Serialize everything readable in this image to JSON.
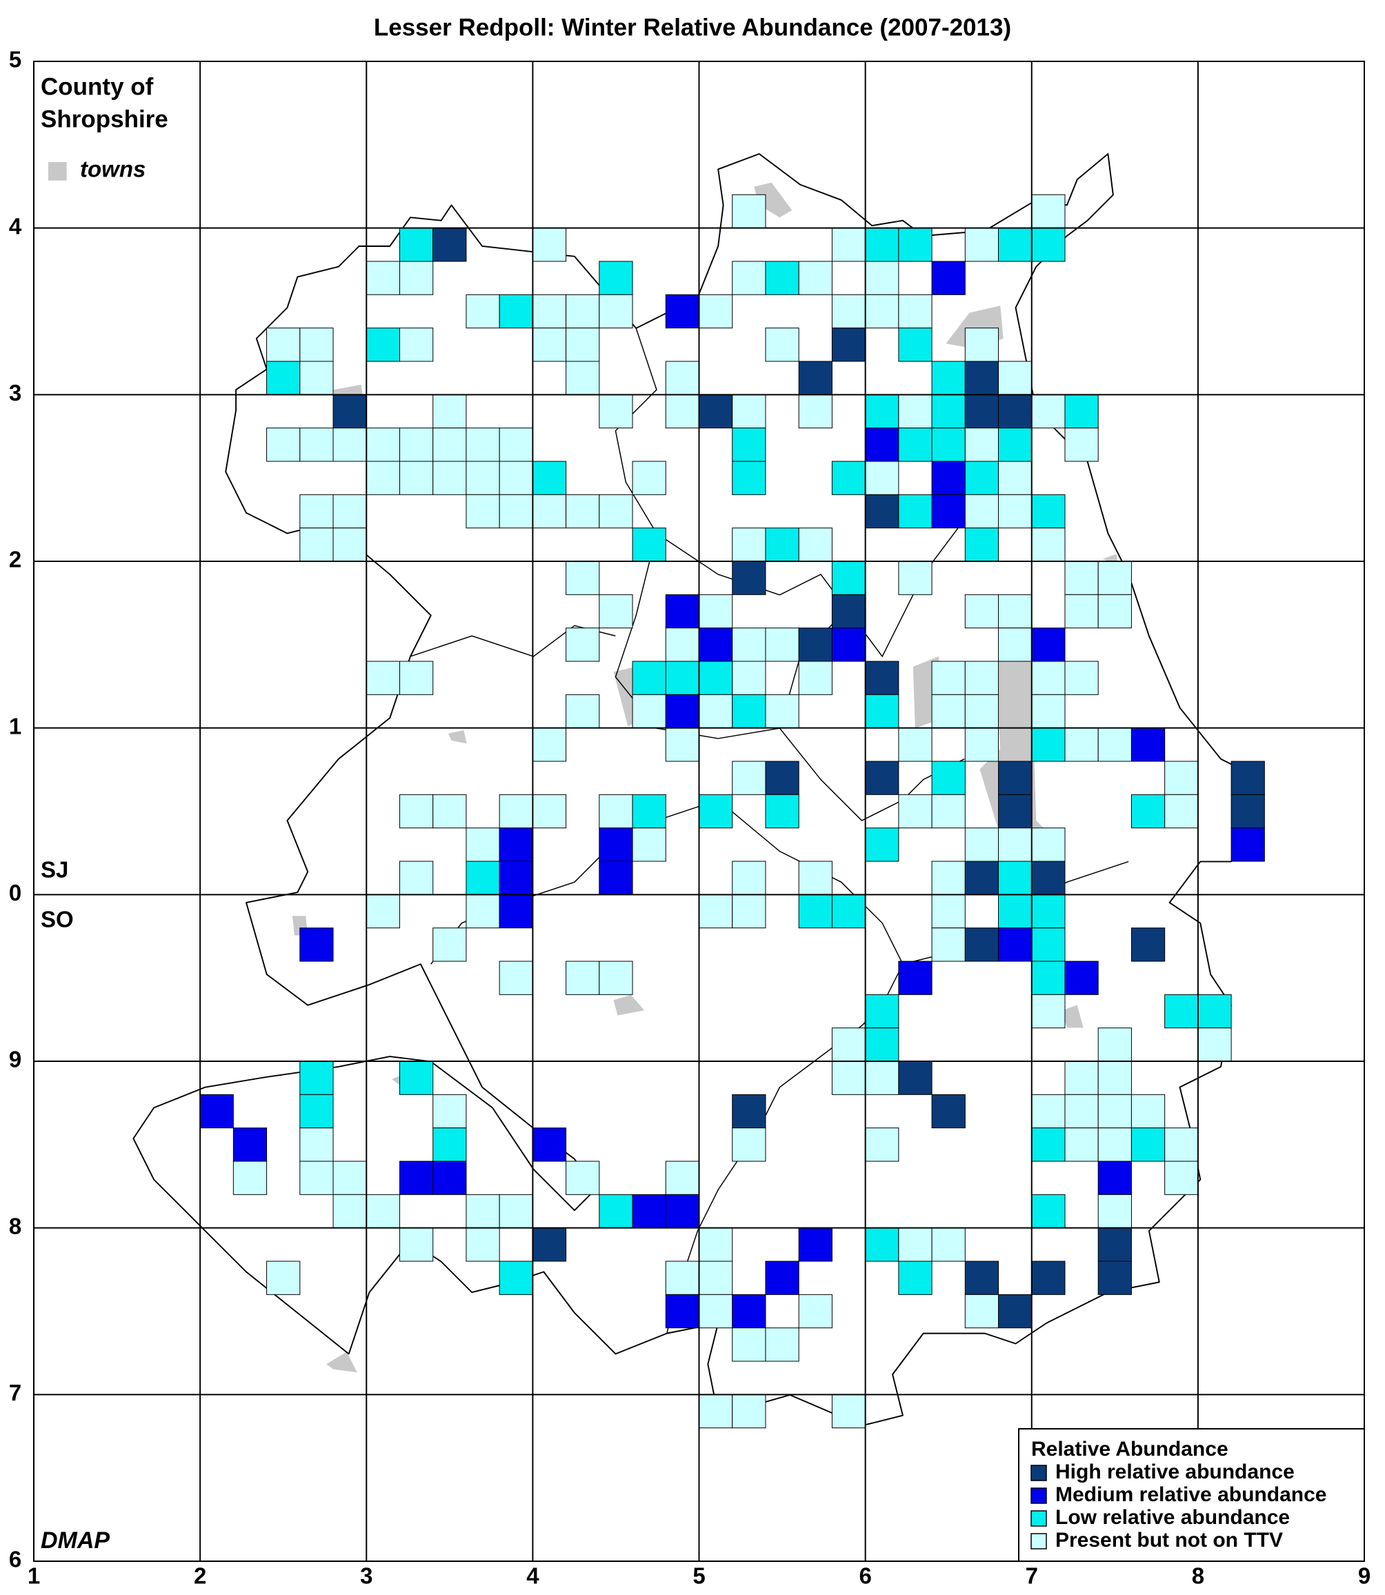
{
  "title": "Lesser Redpoll: Winter Relative Abundance (2007-2013)",
  "county": [
    "County of",
    "Shropshire"
  ],
  "towns_label": "towns",
  "grid_labels": [
    "SJ",
    "SO"
  ],
  "credit": "DMAP",
  "xlim": [
    1,
    9
  ],
  "ylim": [
    -4,
    5
  ],
  "xticks": [
    1,
    2,
    3,
    4,
    5,
    6,
    7,
    8,
    9
  ],
  "yticks": [
    5,
    4,
    3,
    2,
    1,
    0,
    {
      "value": -1,
      "label": "9"
    },
    {
      "value": -2,
      "label": "8"
    },
    {
      "value": -3,
      "label": "7"
    },
    {
      "value": -4,
      "label": "6"
    }
  ],
  "legend": {
    "title": "Relative Abundance",
    "items": [
      {
        "label": "High relative abundance",
        "color": "#0b3a78"
      },
      {
        "label": "Medium relative abundance",
        "color": "#0000ee"
      },
      {
        "label": "Low relative abundance",
        "color": "#00eeee"
      },
      {
        "label": "Present but not on TTV",
        "color": "#ccffff"
      }
    ]
  },
  "rows": [
    {
      "y": 4.0,
      "cells": [
        [
          5.2,
          3
        ],
        [
          7.0,
          3
        ]
      ]
    },
    {
      "y": 3.8,
      "cells": [
        [
          3.2,
          2
        ],
        [
          3.4,
          0
        ],
        [
          4.0,
          3
        ],
        [
          5.8,
          3
        ],
        [
          6.0,
          2
        ],
        [
          6.2,
          2
        ],
        [
          6.6,
          3
        ],
        [
          6.8,
          2
        ],
        [
          7.0,
          2
        ]
      ]
    },
    {
      "y": 3.6,
      "cells": [
        [
          3.0,
          3
        ],
        [
          3.2,
          3
        ],
        [
          4.4,
          2
        ],
        [
          5.2,
          3
        ],
        [
          5.4,
          2
        ],
        [
          5.6,
          3
        ],
        [
          6.0,
          3
        ],
        [
          6.4,
          1
        ]
      ]
    },
    {
      "y": 3.4,
      "cells": [
        [
          3.6,
          3
        ],
        [
          3.8,
          2
        ],
        [
          4.0,
          3
        ],
        [
          4.2,
          3
        ],
        [
          4.4,
          3
        ],
        [
          4.8,
          1
        ],
        [
          5.0,
          3
        ],
        [
          5.8,
          3
        ],
        [
          6.0,
          3
        ],
        [
          6.2,
          3
        ]
      ]
    },
    {
      "y": 3.2,
      "cells": [
        [
          2.4,
          3
        ],
        [
          2.6,
          3
        ],
        [
          3.0,
          2
        ],
        [
          3.2,
          3
        ],
        [
          4.0,
          3
        ],
        [
          4.2,
          3
        ],
        [
          5.4,
          3
        ],
        [
          5.8,
          0
        ],
        [
          6.2,
          2
        ],
        [
          6.6,
          3
        ]
      ]
    },
    {
      "y": 3.0,
      "cells": [
        [
          2.4,
          2
        ],
        [
          2.6,
          3
        ],
        [
          4.2,
          3
        ],
        [
          4.8,
          3
        ],
        [
          5.6,
          0
        ],
        [
          6.4,
          2
        ],
        [
          6.6,
          0
        ],
        [
          6.8,
          3
        ]
      ]
    },
    {
      "y": 2.8,
      "cells": [
        [
          2.8,
          0
        ],
        [
          3.4,
          3
        ],
        [
          4.4,
          3
        ],
        [
          4.8,
          3
        ],
        [
          5.0,
          0
        ],
        [
          5.2,
          3
        ],
        [
          5.6,
          3
        ],
        [
          6.0,
          2
        ],
        [
          6.2,
          3
        ],
        [
          6.4,
          2
        ],
        [
          6.6,
          0
        ],
        [
          6.8,
          0
        ],
        [
          7.0,
          3
        ],
        [
          7.2,
          2
        ]
      ]
    },
    {
      "y": 2.6,
      "cells": [
        [
          2.4,
          3
        ],
        [
          2.6,
          3
        ],
        [
          2.8,
          3
        ],
        [
          3.0,
          3
        ],
        [
          3.2,
          3
        ],
        [
          3.4,
          3
        ],
        [
          3.6,
          3
        ],
        [
          3.8,
          3
        ],
        [
          5.2,
          2
        ],
        [
          6.0,
          1
        ],
        [
          6.2,
          2
        ],
        [
          6.4,
          2
        ],
        [
          6.6,
          3
        ],
        [
          6.8,
          2
        ],
        [
          7.2,
          3
        ]
      ]
    },
    {
      "y": 2.4,
      "cells": [
        [
          3.0,
          3
        ],
        [
          3.2,
          3
        ],
        [
          3.4,
          3
        ],
        [
          3.6,
          3
        ],
        [
          3.8,
          3
        ],
        [
          4.0,
          2
        ],
        [
          4.6,
          3
        ],
        [
          5.2,
          2
        ],
        [
          5.8,
          2
        ],
        [
          6.0,
          3
        ],
        [
          6.4,
          1
        ],
        [
          6.6,
          2
        ],
        [
          6.8,
          3
        ]
      ]
    },
    {
      "y": 2.2,
      "cells": [
        [
          2.6,
          3
        ],
        [
          2.8,
          3
        ],
        [
          3.6,
          3
        ],
        [
          3.8,
          3
        ],
        [
          4.0,
          3
        ],
        [
          4.2,
          3
        ],
        [
          4.4,
          3
        ],
        [
          6.0,
          0
        ],
        [
          6.2,
          2
        ],
        [
          6.4,
          1
        ],
        [
          6.6,
          3
        ],
        [
          6.8,
          3
        ],
        [
          7.0,
          2
        ]
      ]
    },
    {
      "y": 2.0,
      "cells": [
        [
          2.6,
          3
        ],
        [
          2.8,
          3
        ],
        [
          4.6,
          2
        ],
        [
          5.2,
          3
        ],
        [
          5.4,
          2
        ],
        [
          5.6,
          3
        ],
        [
          6.6,
          2
        ],
        [
          7.0,
          3
        ]
      ]
    },
    {
      "y": 1.8,
      "cells": [
        [
          4.2,
          3
        ],
        [
          5.2,
          0
        ],
        [
          5.8,
          2
        ],
        [
          6.2,
          3
        ],
        [
          7.2,
          3
        ],
        [
          7.4,
          3
        ]
      ]
    },
    {
      "y": 1.6,
      "cells": [
        [
          4.4,
          3
        ],
        [
          4.8,
          1
        ],
        [
          5.0,
          3
        ],
        [
          5.8,
          0
        ],
        [
          6.6,
          3
        ],
        [
          6.8,
          3
        ],
        [
          7.2,
          3
        ],
        [
          7.4,
          3
        ]
      ]
    },
    {
      "y": 1.4,
      "cells": [
        [
          4.2,
          3
        ],
        [
          4.8,
          3
        ],
        [
          5.0,
          1
        ],
        [
          5.2,
          3
        ],
        [
          5.4,
          3
        ],
        [
          5.6,
          0
        ],
        [
          5.8,
          1
        ],
        [
          6.8,
          3
        ],
        [
          7.0,
          1
        ]
      ]
    },
    {
      "y": 1.2,
      "cells": [
        [
          3.0,
          3
        ],
        [
          3.2,
          3
        ],
        [
          4.6,
          2
        ],
        [
          4.8,
          2
        ],
        [
          5.0,
          2
        ],
        [
          5.2,
          3
        ],
        [
          5.6,
          3
        ],
        [
          6.0,
          0
        ],
        [
          6.4,
          3
        ],
        [
          6.6,
          3
        ],
        [
          7.0,
          3
        ],
        [
          7.2,
          3
        ]
      ]
    },
    {
      "y": 1.0,
      "cells": [
        [
          4.2,
          3
        ],
        [
          4.6,
          3
        ],
        [
          4.8,
          1
        ],
        [
          5.0,
          3
        ],
        [
          5.2,
          2
        ],
        [
          5.4,
          3
        ],
        [
          6.0,
          2
        ],
        [
          6.4,
          3
        ],
        [
          6.6,
          3
        ],
        [
          7.0,
          3
        ]
      ]
    },
    {
      "y": 0.8,
      "cells": [
        [
          4.0,
          3
        ],
        [
          4.8,
          3
        ],
        [
          6.2,
          3
        ],
        [
          6.6,
          3
        ],
        [
          7.0,
          2
        ],
        [
          7.2,
          3
        ],
        [
          7.4,
          3
        ],
        [
          7.6,
          1
        ]
      ]
    },
    {
      "y": 0.6,
      "cells": [
        [
          5.2,
          3
        ],
        [
          5.4,
          0
        ],
        [
          6.0,
          0
        ],
        [
          6.4,
          2
        ],
        [
          6.8,
          0
        ],
        [
          7.8,
          3
        ],
        [
          8.2,
          0
        ]
      ]
    },
    {
      "y": 0.4,
      "cells": [
        [
          3.2,
          3
        ],
        [
          3.4,
          3
        ],
        [
          3.8,
          3
        ],
        [
          4.0,
          3
        ],
        [
          4.4,
          3
        ],
        [
          4.6,
          2
        ],
        [
          5.0,
          2
        ],
        [
          5.4,
          2
        ],
        [
          6.2,
          3
        ],
        [
          6.4,
          3
        ],
        [
          6.8,
          0
        ],
        [
          7.6,
          2
        ],
        [
          7.8,
          3
        ],
        [
          8.2,
          0
        ]
      ]
    },
    {
      "y": 0.2,
      "cells": [
        [
          3.6,
          3
        ],
        [
          3.8,
          1
        ],
        [
          4.4,
          1
        ],
        [
          4.6,
          3
        ],
        [
          6.0,
          2
        ],
        [
          6.6,
          3
        ],
        [
          6.8,
          3
        ],
        [
          7.0,
          3
        ],
        [
          8.2,
          1
        ]
      ]
    },
    {
      "y": 0.0,
      "cells": [
        [
          3.2,
          3
        ],
        [
          3.6,
          2
        ],
        [
          3.8,
          1
        ],
        [
          4.4,
          1
        ],
        [
          5.2,
          3
        ],
        [
          5.6,
          3
        ],
        [
          6.4,
          3
        ],
        [
          6.6,
          0
        ],
        [
          6.8,
          2
        ],
        [
          7.0,
          0
        ]
      ]
    },
    {
      "y": -0.2,
      "cells": [
        [
          3.0,
          3
        ],
        [
          3.6,
          3
        ],
        [
          3.8,
          1
        ],
        [
          5.0,
          3
        ],
        [
          5.2,
          3
        ],
        [
          5.6,
          2
        ],
        [
          5.8,
          2
        ],
        [
          6.4,
          3
        ],
        [
          6.8,
          2
        ],
        [
          7.0,
          2
        ]
      ]
    },
    {
      "y": -0.4,
      "cells": [
        [
          2.6,
          1
        ],
        [
          3.4,
          3
        ],
        [
          6.4,
          3
        ],
        [
          6.6,
          0
        ],
        [
          6.8,
          1
        ],
        [
          7.0,
          2
        ],
        [
          7.6,
          0
        ]
      ]
    },
    {
      "y": -0.6,
      "cells": [
        [
          3.8,
          3
        ],
        [
          4.2,
          3
        ],
        [
          4.4,
          3
        ],
        [
          6.2,
          1
        ],
        [
          7.0,
          2
        ],
        [
          7.2,
          1
        ]
      ]
    },
    {
      "y": -0.8,
      "cells": [
        [
          6.0,
          2
        ],
        [
          7.0,
          3
        ],
        [
          7.8,
          2
        ],
        [
          8.0,
          2
        ]
      ]
    },
    {
      "y": -1.0,
      "cells": [
        [
          5.8,
          3
        ],
        [
          6.0,
          2
        ],
        [
          7.4,
          3
        ],
        [
          8.0,
          3
        ]
      ]
    },
    {
      "y": -1.2,
      "cells": [
        [
          2.6,
          2
        ],
        [
          3.2,
          2
        ],
        [
          5.8,
          3
        ],
        [
          6.0,
          3
        ],
        [
          6.2,
          0
        ],
        [
          7.2,
          3
        ],
        [
          7.4,
          3
        ]
      ]
    },
    {
      "y": -1.4,
      "cells": [
        [
          2.0,
          1
        ],
        [
          2.6,
          2
        ],
        [
          3.4,
          3
        ],
        [
          5.2,
          0
        ],
        [
          6.4,
          0
        ],
        [
          7.0,
          3
        ],
        [
          7.2,
          3
        ],
        [
          7.4,
          3
        ],
        [
          7.6,
          3
        ]
      ]
    },
    {
      "y": -1.6,
      "cells": [
        [
          2.2,
          1
        ],
        [
          2.6,
          3
        ],
        [
          3.4,
          2
        ],
        [
          4.0,
          1
        ],
        [
          5.2,
          3
        ],
        [
          6.0,
          3
        ],
        [
          7.0,
          2
        ],
        [
          7.2,
          3
        ],
        [
          7.4,
          3
        ],
        [
          7.6,
          2
        ],
        [
          7.8,
          3
        ]
      ]
    },
    {
      "y": -1.8,
      "cells": [
        [
          2.2,
          3
        ],
        [
          2.6,
          3
        ],
        [
          2.8,
          3
        ],
        [
          3.2,
          1
        ],
        [
          3.4,
          1
        ],
        [
          4.2,
          3
        ],
        [
          4.8,
          3
        ],
        [
          7.4,
          1
        ],
        [
          7.8,
          3
        ]
      ]
    },
    {
      "y": -2.0,
      "cells": [
        [
          2.8,
          3
        ],
        [
          3.0,
          3
        ],
        [
          3.6,
          3
        ],
        [
          3.8,
          3
        ],
        [
          4.4,
          2
        ],
        [
          4.6,
          1
        ],
        [
          4.8,
          1
        ],
        [
          7.0,
          2
        ],
        [
          7.4,
          3
        ]
      ]
    },
    {
      "y": -2.2,
      "cells": [
        [
          3.2,
          3
        ],
        [
          3.6,
          3
        ],
        [
          4.0,
          0
        ],
        [
          5.0,
          3
        ],
        [
          5.6,
          1
        ],
        [
          6.0,
          2
        ],
        [
          6.2,
          3
        ],
        [
          6.4,
          3
        ],
        [
          7.4,
          0
        ]
      ]
    },
    {
      "y": -2.4,
      "cells": [
        [
          2.4,
          3
        ],
        [
          3.8,
          2
        ],
        [
          4.8,
          3
        ],
        [
          5.0,
          3
        ],
        [
          5.4,
          1
        ],
        [
          6.2,
          2
        ],
        [
          6.6,
          0
        ],
        [
          7.0,
          0
        ],
        [
          7.4,
          0
        ]
      ]
    },
    {
      "y": -2.6,
      "cells": [
        [
          4.8,
          1
        ],
        [
          5.0,
          3
        ],
        [
          5.2,
          1
        ],
        [
          5.6,
          3
        ],
        [
          6.6,
          3
        ],
        [
          6.8,
          0
        ]
      ]
    },
    {
      "y": -2.8,
      "cells": [
        [
          5.2,
          3
        ],
        [
          5.4,
          3
        ]
      ]
    },
    {
      "y": -3.2,
      "cells": [
        [
          5.0,
          3
        ],
        [
          5.2,
          3
        ],
        [
          5.8,
          3
        ]
      ]
    }
  ]
}
